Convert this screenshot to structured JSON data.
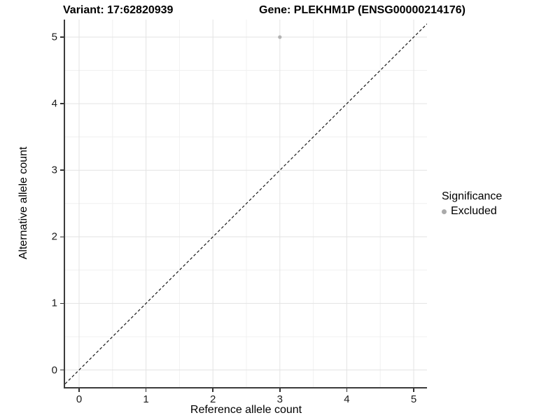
{
  "header": {
    "variant_title": "Variant: 17:62820939",
    "gene_title": "Gene: PLEKHM1P (ENSG00000214176)"
  },
  "legend": {
    "title": "Significance",
    "items": [
      {
        "label": "Excluded",
        "color": "#aaaaaa"
      }
    ]
  },
  "chart_data": {
    "type": "scatter",
    "title": "Variant: 17:62820939 — Gene: PLEKHM1P (ENSG00000214176)",
    "xlabel": "Reference allele count",
    "ylabel": "Alternative allele count",
    "x_ticks": [
      0,
      1,
      2,
      3,
      4,
      5
    ],
    "y_ticks": [
      0,
      1,
      2,
      3,
      4,
      5
    ],
    "xlim": [
      -0.21,
      5.2
    ],
    "ylim": [
      -0.26,
      5.26
    ],
    "grid": {
      "major_color": "#e3e3e3",
      "minor_color": "#f0f0f0",
      "minor_step": 0.5,
      "minor_positions": [
        0.5,
        1.5,
        2.5,
        3.5,
        4.5
      ]
    },
    "series": [
      {
        "name": "Excluded",
        "color": "#b2b2b2",
        "points": [
          {
            "x": 3,
            "y": 5
          }
        ]
      }
    ],
    "reference_line": {
      "kind": "identity",
      "slope": 1,
      "intercept": 0,
      "style": "dashed",
      "color": "#1a1a1a"
    },
    "legend_position": "right",
    "point_radius_px": 2.6
  },
  "colors": {
    "axis_line": "#3c3c3c",
    "tick_mark": "#333333",
    "tick_text": "#1a1a1a",
    "background": "#ffffff"
  }
}
